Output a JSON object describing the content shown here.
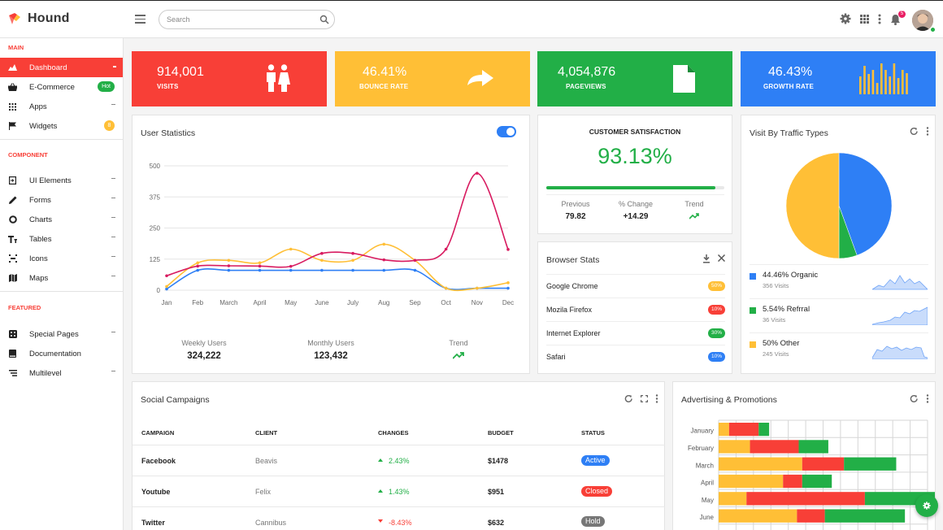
{
  "app": {
    "name": "Hound"
  },
  "search": {
    "placeholder": "Search"
  },
  "topbar": {
    "notification_count": "5"
  },
  "sidebar": {
    "sections": [
      "MAIN",
      "COMPONENT",
      "FEATURED"
    ],
    "main_items": [
      {
        "label": "Dashboard",
        "icon": "dashboard-icon"
      },
      {
        "label": "E-Commerce",
        "icon": "basket-icon",
        "badge": "Hot"
      },
      {
        "label": "Apps",
        "icon": "apps-grid-icon"
      },
      {
        "label": "Widgets",
        "icon": "flag-icon",
        "badge": "8"
      }
    ],
    "component_items": [
      {
        "label": "UI Elements",
        "icon": "ui-elements-icon"
      },
      {
        "label": "Forms",
        "icon": "pencil-icon"
      },
      {
        "label": "Charts",
        "icon": "donut-chart-icon"
      },
      {
        "label": "Tables",
        "icon": "table-icon"
      },
      {
        "label": "Icons",
        "icon": "icons-icon"
      },
      {
        "label": "Maps",
        "icon": "map-icon"
      }
    ],
    "featured_items": [
      {
        "label": "Special Pages",
        "icon": "special-pages-icon"
      },
      {
        "label": "Documentation",
        "icon": "book-icon"
      },
      {
        "label": "Multilevel",
        "icon": "multilevel-icon"
      }
    ]
  },
  "stats": [
    {
      "value": "914,001",
      "label": "VISITS",
      "color": "#f83f37",
      "icon": "users-icon"
    },
    {
      "value": "46.41%",
      "label": "BOUNCE RATE",
      "color": "#ffbf36",
      "icon": "redo-arrow-icon"
    },
    {
      "value": "4,054,876",
      "label": "PAGEVIEWS",
      "color": "#22af47",
      "icon": "file-icon"
    },
    {
      "value": "46.43%",
      "label": "GROWTH RATE",
      "color": "#2e7ff5",
      "icon": "bar-chart-icon"
    }
  ],
  "user_statistics": {
    "title": "User Statistics",
    "footer": [
      {
        "label": "Weekly Users",
        "value": "324,222"
      },
      {
        "label": "Monthly Users",
        "value": "123,432"
      },
      {
        "label": "Trend",
        "value": ""
      }
    ]
  },
  "chart_data": {
    "type": "line",
    "categories": [
      "Jan",
      "Feb",
      "March",
      "April",
      "May",
      "June",
      "July",
      "Aug",
      "Sep",
      "Oct",
      "Nov",
      "Dec"
    ],
    "ylim": [
      0,
      500
    ],
    "yticks": [
      0,
      125,
      250,
      375,
      500
    ],
    "grid": true,
    "series": [
      {
        "color": "#d81b60",
        "values": [
          58,
          97,
          98,
          97,
          96,
          148,
          148,
          122,
          120,
          165,
          470,
          164
        ]
      },
      {
        "color": "#ffbf36",
        "values": [
          15,
          110,
          120,
          110,
          165,
          120,
          120,
          185,
          120,
          8,
          8,
          30
        ]
      },
      {
        "color": "#2e7ff5",
        "values": [
          5,
          80,
          80,
          80,
          80,
          80,
          80,
          80,
          80,
          8,
          8,
          8
        ]
      }
    ]
  },
  "customer_satisfaction": {
    "title": "CUSTOMER SATISFACTION",
    "value": "93.13%",
    "progress": 0.95,
    "stats": [
      {
        "label": "Previous",
        "value": "79.82"
      },
      {
        "label": "% Change",
        "value": "+14.29"
      },
      {
        "label": "Trend",
        "value": ""
      }
    ]
  },
  "browser_stats": {
    "title": "Browser Stats",
    "rows": [
      {
        "name": "Google Chrome",
        "badge": "50%",
        "color": "#ffbf36"
      },
      {
        "name": "Mozila Firefox",
        "badge": "10%",
        "color": "#f83f37"
      },
      {
        "name": "Internet Explorer",
        "badge": "30%",
        "color": "#22af47"
      },
      {
        "name": "Safari",
        "badge": "10%",
        "color": "#2e7ff5"
      }
    ]
  },
  "traffic_types": {
    "title": "Visit By Traffic Types",
    "pie": [
      {
        "label": "Organic",
        "value": 44.46,
        "color": "#2e7ff5"
      },
      {
        "label": "Refrral",
        "value": 5.54,
        "color": "#22af47"
      },
      {
        "label": "Other",
        "value": 50,
        "color": "#ffbf36"
      }
    ],
    "rows": [
      {
        "name": "44.46% Organic",
        "sub": "356 Visits",
        "color": "#2e7ff5"
      },
      {
        "name": "5.54% Refrral",
        "sub": "36 Visits",
        "color": "#22af47"
      },
      {
        "name": "50% Other",
        "sub": "245 Visits",
        "color": "#ffbf36"
      }
    ]
  },
  "social_campaigns": {
    "title": "Social Campaigns",
    "headers": [
      "CAMPAIGN",
      "CLIENT",
      "CHANGES",
      "BUDGET",
      "STATUS"
    ],
    "rows": [
      {
        "campaign": "Facebook",
        "client": "Beavis",
        "change": "2.43%",
        "dir": "up",
        "budget": "$1478",
        "status": "Active",
        "status_color": "#2e7ff5"
      },
      {
        "campaign": "Youtube",
        "client": "Felix",
        "change": "1.43%",
        "dir": "up",
        "budget": "$951",
        "status": "Closed",
        "status_color": "#f83f37"
      },
      {
        "campaign": "Twitter",
        "client": "Cannibus",
        "change": "-8.43%",
        "dir": "down",
        "budget": "$632",
        "status": "Hold",
        "status_color": "#777777"
      }
    ]
  },
  "advertising": {
    "title": "Advertising & Promotions",
    "months": [
      "January",
      "February",
      "March",
      "April",
      "May",
      "June"
    ],
    "colors": [
      "#ffbf36",
      "#f83f37",
      "#22af47"
    ],
    "bars": [
      [
        6,
        17,
        6
      ],
      [
        18,
        28,
        17
      ],
      [
        48,
        24,
        30
      ],
      [
        37,
        11,
        17
      ],
      [
        16,
        68,
        46
      ],
      [
        45,
        16,
        46
      ]
    ],
    "xlim": [
      0,
      120
    ]
  }
}
